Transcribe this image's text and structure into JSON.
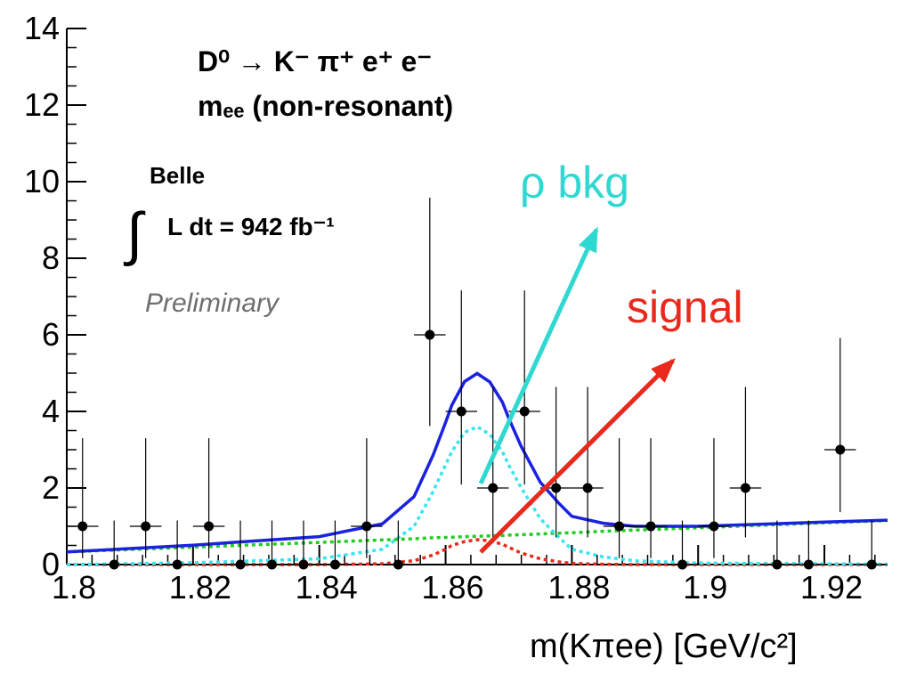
{
  "chart_data": {
    "type": "scatter",
    "x_label": "m(Kπee) [GeV/c²]",
    "title_lines": [
      "D⁰ → K⁻ π⁺ e⁺ e⁻",
      "mₑₑ (non-resonant)"
    ],
    "experiment": "Belle",
    "integral_sign": "∫",
    "luminosity": "L dt = 942 fb⁻¹",
    "status": "Preliminary",
    "labels": [
      {
        "text": "ρ bkg",
        "color": "#2fd8d0"
      },
      {
        "text": "signal",
        "color": "#e8291c"
      }
    ],
    "xlim": [
      1.8,
      1.93
    ],
    "ylim": [
      0,
      14
    ],
    "xticks": [
      1.8,
      1.82,
      1.84,
      1.86,
      1.88,
      1.9,
      1.92
    ],
    "yticks": [
      0,
      2,
      4,
      6,
      8,
      10,
      12,
      14
    ],
    "color": "#000000",
    "x": [
      1.8025,
      1.8075,
      1.8125,
      1.8175,
      1.8225,
      1.8275,
      1.8325,
      1.8375,
      1.8425,
      1.8475,
      1.8525,
      1.8575,
      1.8625,
      1.8675,
      1.8725,
      1.8775,
      1.8825,
      1.8875,
      1.8925,
      1.8975,
      1.9025,
      1.9075,
      1.9125,
      1.9175,
      1.9225,
      1.9275
    ],
    "values": [
      1,
      0,
      1,
      0,
      1,
      0,
      0,
      0,
      0,
      1,
      0,
      6,
      4,
      2,
      4,
      2,
      2,
      1,
      1,
      0,
      1,
      2,
      0,
      0,
      3,
      0
    ],
    "yerr_low": [
      0.83,
      0,
      0.83,
      0,
      0.83,
      0,
      0,
      0,
      0,
      0.83,
      0,
      2.38,
      1.91,
      1.29,
      1.91,
      1.29,
      1.29,
      0.83,
      0.83,
      0,
      0.83,
      1.29,
      0,
      0,
      1.63,
      0
    ],
    "yerr_high": [
      2.3,
      1.15,
      2.3,
      1.15,
      2.3,
      1.15,
      1.15,
      1.15,
      1.15,
      2.3,
      1.15,
      3.58,
      3.16,
      2.64,
      3.16,
      2.64,
      2.64,
      2.3,
      2.3,
      1.15,
      2.3,
      2.64,
      1.15,
      1.15,
      2.92,
      1.15
    ],
    "xerr": 0.0025,
    "curves": {
      "x": [
        1.8,
        1.82,
        1.84,
        1.85,
        1.855,
        1.858,
        1.86,
        1.861,
        1.863,
        1.865,
        1.867,
        1.869,
        1.87,
        1.872,
        1.875,
        1.878,
        1.88,
        1.885,
        1.89,
        1.9,
        1.92,
        1.93
      ],
      "series": [
        {
          "color": "#22cc22",
          "style": "dotted",
          "values": [
            0.33,
            0.456,
            0.58,
            0.645,
            0.675,
            0.7,
            0.71,
            0.715,
            0.73,
            0.74,
            0.75,
            0.76,
            0.77,
            0.78,
            0.8,
            0.82,
            0.83,
            0.87,
            0.9,
            0.96,
            1.09,
            1.15
          ]
        },
        {
          "color": "#e8291c",
          "style": "dotted",
          "values": [
            0,
            0,
            0,
            0.02,
            0.1,
            0.25,
            0.4,
            0.5,
            0.6,
            0.65,
            0.62,
            0.53,
            0.45,
            0.3,
            0.15,
            0.07,
            0.03,
            0.01,
            0,
            0,
            0,
            0
          ]
        },
        {
          "color": "#33e6f0",
          "style": "dotted",
          "values": [
            0,
            0.05,
            0.15,
            0.4,
            1.0,
            1.9,
            2.6,
            2.95,
            3.45,
            3.6,
            3.4,
            2.95,
            2.6,
            2.0,
            1.2,
            0.7,
            0.4,
            0.2,
            0.1,
            0.04,
            0.02,
            0.01
          ]
        },
        {
          "color": "#1a22e0",
          "style": "solid",
          "values": [
            0.33,
            0.506,
            0.73,
            1.065,
            1.775,
            2.85,
            3.71,
            4.165,
            4.78,
            4.99,
            4.77,
            4.24,
            3.82,
            3.08,
            2.15,
            1.59,
            1.26,
            1.08,
            1.0,
            1.0,
            1.11,
            1.16
          ]
        }
      ]
    }
  }
}
